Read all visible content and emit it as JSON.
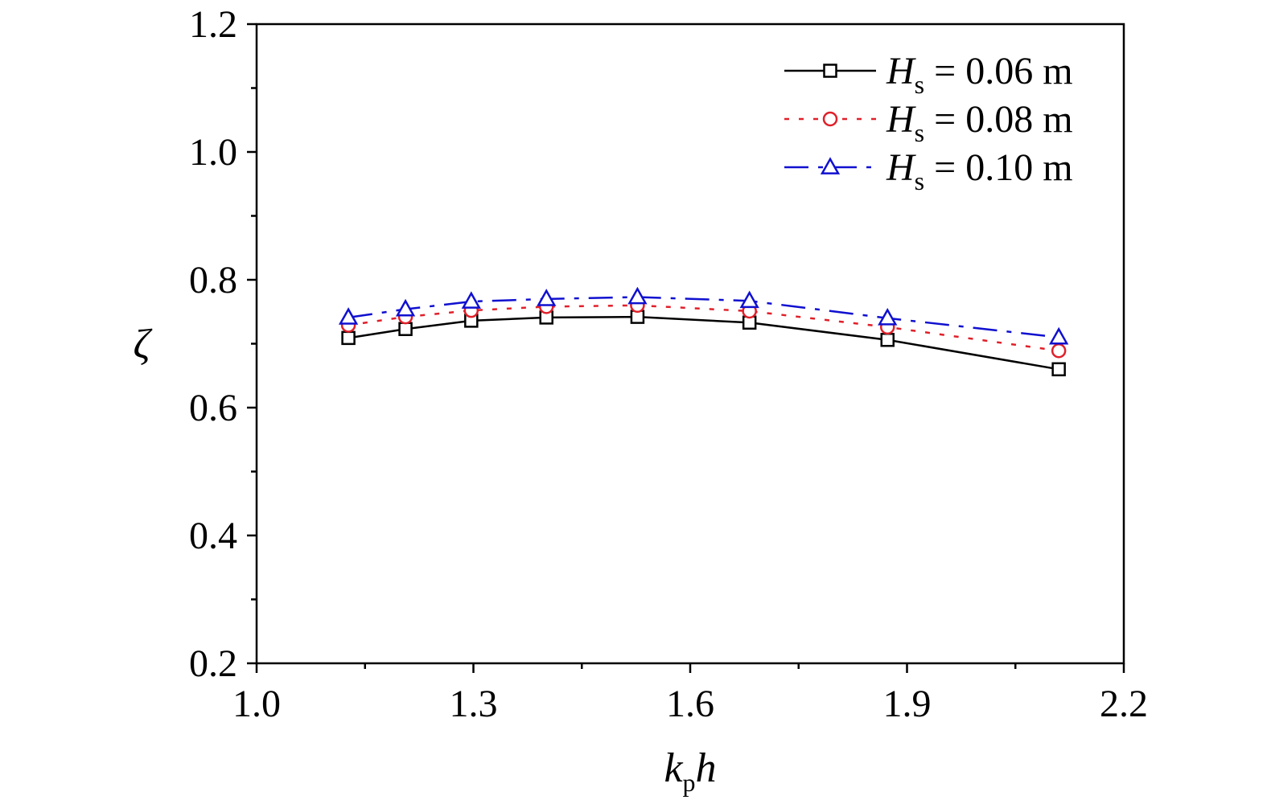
{
  "chart_data": {
    "type": "line",
    "xlabel": {
      "base": "k",
      "sub": "p",
      "tail": "h"
    },
    "ylabel": "ζ",
    "xlim": [
      1.0,
      2.2
    ],
    "ylim": [
      0.2,
      1.2
    ],
    "xticks": [
      "1.0",
      "1.3",
      "1.6",
      "1.9",
      "2.2"
    ],
    "yticks": [
      "0.2",
      "0.4",
      "0.6",
      "0.8",
      "1.0",
      "1.2"
    ],
    "grid": false,
    "legend_position": "top-right",
    "x": [
      1.127,
      1.206,
      1.297,
      1.401,
      1.527,
      1.682,
      1.873,
      2.11
    ],
    "series": [
      {
        "label": {
          "base": "H",
          "sub": "s",
          "rest": " = 0.06 m"
        },
        "color": "#000000",
        "dash": "solid",
        "marker": "square",
        "values": [
          0.709,
          0.723,
          0.736,
          0.741,
          0.742,
          0.733,
          0.706,
          0.66
        ]
      },
      {
        "label": {
          "base": "H",
          "sub": "s",
          "rest": " = 0.08 m"
        },
        "color": "#e0202a",
        "dash": "dot",
        "marker": "circle",
        "values": [
          0.729,
          0.742,
          0.752,
          0.758,
          0.76,
          0.751,
          0.726,
          0.689
        ]
      },
      {
        "label": {
          "base": "H",
          "sub": "s",
          "rest": " = 0.10 m"
        },
        "color": "#1010d0",
        "dash": "dashdot",
        "marker": "triangle",
        "values": [
          0.741,
          0.754,
          0.766,
          0.77,
          0.773,
          0.767,
          0.74,
          0.71
        ]
      }
    ]
  }
}
